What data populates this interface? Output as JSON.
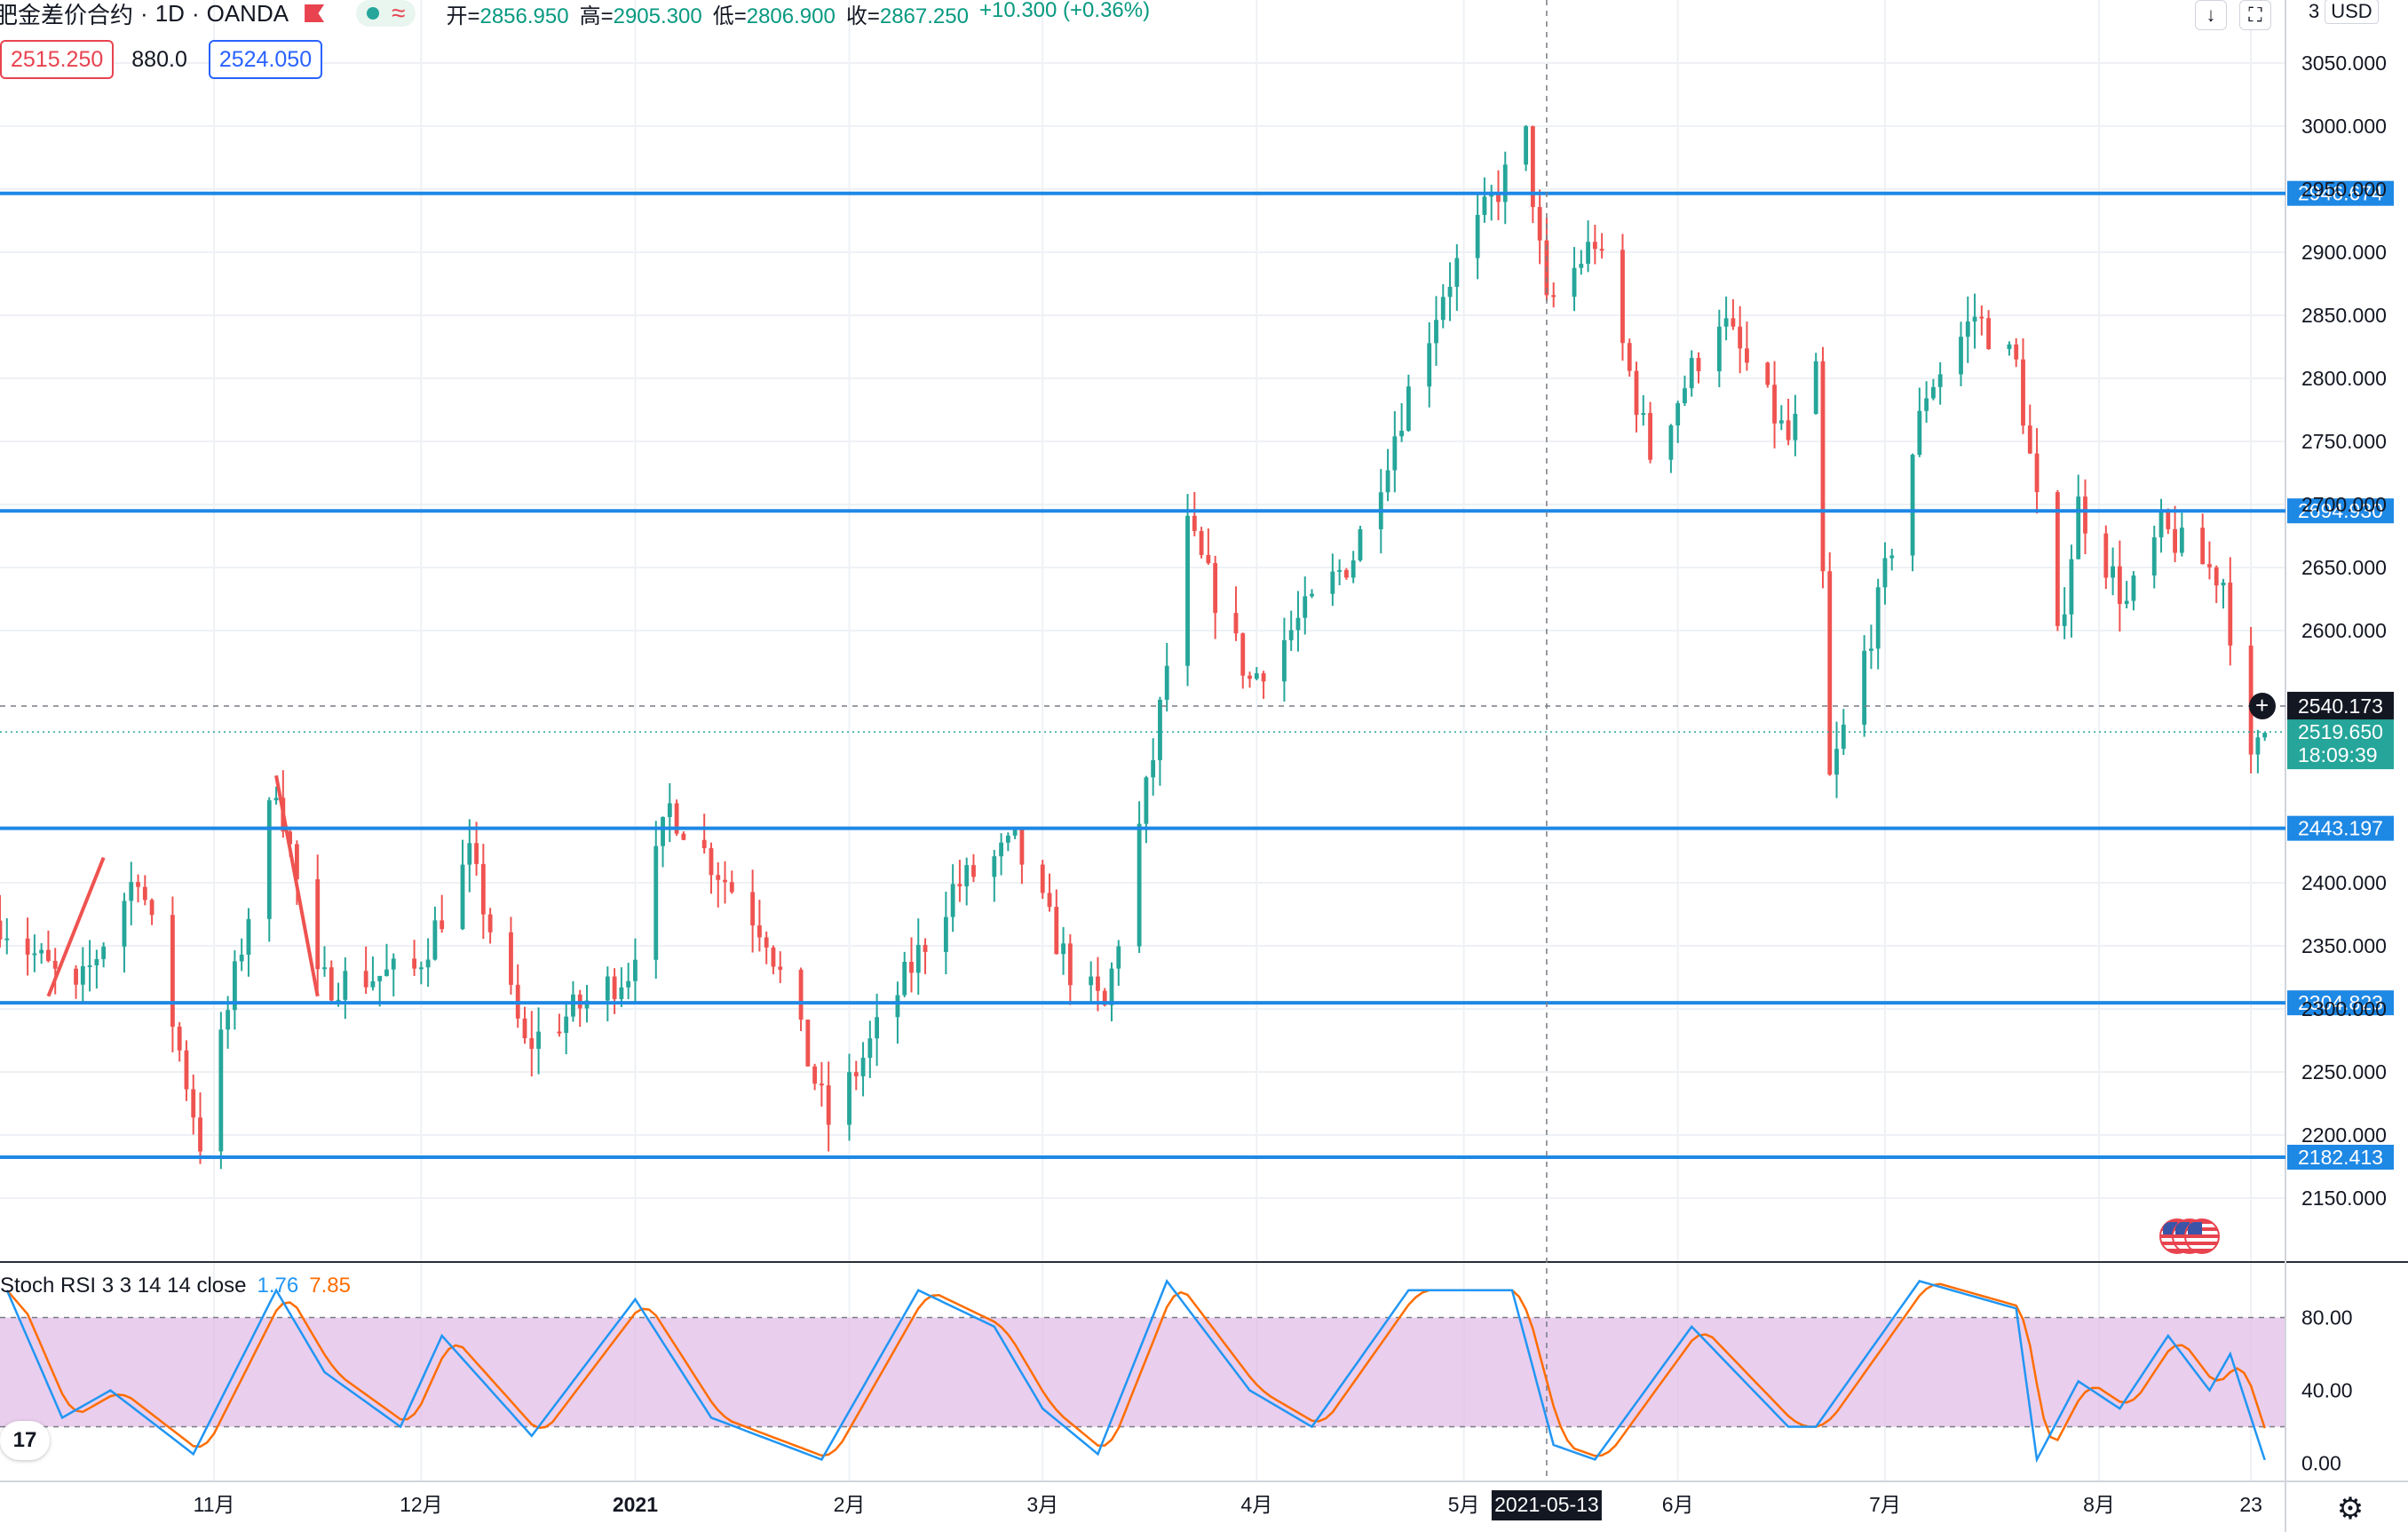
{
  "header": {
    "symbol": "肥金差价合约",
    "interval": "1D",
    "exchange": "OANDA",
    "ohlc": [
      {
        "label": "开",
        "value": "2856.950"
      },
      {
        "label": "高",
        "value": "2905.300"
      },
      {
        "label": "低",
        "value": "2806.900"
      },
      {
        "label": "收",
        "value": "2867.250"
      }
    ],
    "change": "+10.300 (+0.36%)"
  },
  "quote": {
    "sell": "2515.250",
    "spread": "880.0",
    "buy": "2524.050"
  },
  "toolbar": {
    "currency": "USD",
    "scroll_icon": "arrow-down-icon",
    "fullscreen_icon": "fullscreen-icon"
  },
  "indicator_legend": {
    "name": "Stoch RSI 3 3 14 14 close",
    "k_value": "1.76",
    "d_value": "7.85"
  },
  "colors": {
    "up": "#26a69a",
    "down": "#ef5350",
    "level_line": "#1e88e5",
    "stoch_k": "#2196f3",
    "stoch_d": "#ff6d00",
    "stoch_band": "#e1bee7"
  },
  "chart_data": [
    {
      "type": "candlestick",
      "title": "肥金差价合约 · 1D · OANDA",
      "y_axis": {
        "ticks": [
          2150,
          2200,
          2250,
          2300,
          2350,
          2400,
          2600,
          2650,
          2700,
          2750,
          2800,
          2850,
          2900,
          2950,
          3000,
          3050
        ],
        "tick_labels": [
          "2150.000",
          "2200.000",
          "2250.000",
          "2300.000",
          "2350.000",
          "2400.000",
          "2600.000",
          "2650.000",
          "2700.000",
          "2750.000",
          "2800.000",
          "2850.000",
          "2900.000",
          "2950.000",
          "3000.000",
          "3050.000"
        ],
        "range": [
          2100,
          3100
        ]
      },
      "x_axis": {
        "ticks": [
          "11月",
          "12月",
          "2021",
          "2月",
          "3月",
          "4月",
          "5月",
          "6月",
          "7月",
          "8月",
          "23"
        ],
        "tick_dates": [
          "2020-11-01",
          "2020-12-01",
          "2021-01-01",
          "2021-02-01",
          "2021-03-01",
          "2021-04-01",
          "2021-05-01",
          "2021-06-01",
          "2021-07-01",
          "2021-08-01",
          "2021-08-23"
        ],
        "range": [
          "2020-10-01",
          "2021-08-28"
        ],
        "crosshair_date": "2021-05-13"
      },
      "horizontal_levels": [
        2946.674,
        2694.93,
        2443.197,
        2304.823,
        2182.413
      ],
      "crosshair_price": "2540.173",
      "last_price": "2519.650",
      "countdown": "18:09:39",
      "trend_lines": [
        {
          "color": "#ef5350",
          "from": {
            "date": "2020-10-08",
            "price": 2310
          },
          "to": {
            "date": "2020-10-16",
            "price": 2420
          }
        },
        {
          "color": "#ef5350",
          "from": {
            "date": "2020-11-10",
            "price": 2485
          },
          "to": {
            "date": "2020-11-16",
            "price": 2310
          }
        }
      ],
      "grid": true,
      "key_points": [
        {
          "date": "2020-10-01",
          "close": 2370
        },
        {
          "date": "2020-10-12",
          "close": 2310
        },
        {
          "date": "2020-10-21",
          "close": 2410
        },
        {
          "date": "2020-10-30",
          "close": 2195
        },
        {
          "date": "2020-11-10",
          "close": 2480
        },
        {
          "date": "2020-11-16",
          "close": 2320
        },
        {
          "date": "2020-11-30",
          "close": 2330
        },
        {
          "date": "2020-12-08",
          "close": 2420
        },
        {
          "date": "2020-12-16",
          "close": 2270
        },
        {
          "date": "2020-12-31",
          "close": 2330
        },
        {
          "date": "2021-01-06",
          "close": 2460
        },
        {
          "date": "2021-01-20",
          "close": 2360
        },
        {
          "date": "2021-01-29",
          "close": 2210
        },
        {
          "date": "2021-02-16",
          "close": 2395
        },
        {
          "date": "2021-02-25",
          "close": 2430
        },
        {
          "date": "2021-03-05",
          "close": 2330
        },
        {
          "date": "2021-03-10",
          "close": 2300
        },
        {
          "date": "2021-03-17",
          "close": 2500
        },
        {
          "date": "2021-03-22",
          "close": 2680
        },
        {
          "date": "2021-03-31",
          "close": 2560
        },
        {
          "date": "2021-04-15",
          "close": 2660
        },
        {
          "date": "2021-04-28",
          "close": 2870
        },
        {
          "date": "2021-05-10",
          "close": 2990
        },
        {
          "date": "2021-05-13",
          "close": 2855
        },
        {
          "date": "2021-05-20",
          "close": 2910
        },
        {
          "date": "2021-05-28",
          "close": 2740
        },
        {
          "date": "2021-06-07",
          "close": 2850
        },
        {
          "date": "2021-06-17",
          "close": 2750
        },
        {
          "date": "2021-06-21",
          "close": 2800
        },
        {
          "date": "2021-06-23",
          "close": 2480
        },
        {
          "date": "2021-06-30",
          "close": 2620
        },
        {
          "date": "2021-07-07",
          "close": 2790
        },
        {
          "date": "2021-07-14",
          "close": 2850
        },
        {
          "date": "2021-07-20",
          "close": 2810
        },
        {
          "date": "2021-07-26",
          "close": 2590
        },
        {
          "date": "2021-07-29",
          "close": 2700
        },
        {
          "date": "2021-08-05",
          "close": 2620
        },
        {
          "date": "2021-08-10",
          "close": 2680
        },
        {
          "date": "2021-08-19",
          "close": 2640
        },
        {
          "date": "2021-08-23",
          "close": 2490
        },
        {
          "date": "2021-08-25",
          "close": 2520
        }
      ]
    },
    {
      "type": "line",
      "title": "Stoch RSI 3 3 14 14 close",
      "y_axis": {
        "ticks": [
          0,
          40,
          80
        ],
        "tick_labels": [
          "0.00",
          "40.00",
          "80.00"
        ],
        "range": [
          -10,
          110
        ]
      },
      "band": [
        20,
        80
      ],
      "series": [
        {
          "name": "K",
          "color": "#2196f3",
          "last": 1.76
        },
        {
          "name": "D",
          "color": "#ff6d00",
          "last": 7.85
        }
      ],
      "key_points": [
        {
          "date": "2020-10-02",
          "k": 95
        },
        {
          "date": "2020-10-10",
          "k": 25
        },
        {
          "date": "2020-10-17",
          "k": 40
        },
        {
          "date": "2020-10-29",
          "k": 5
        },
        {
          "date": "2020-11-10",
          "k": 95
        },
        {
          "date": "2020-11-17",
          "k": 50
        },
        {
          "date": "2020-11-28",
          "k": 20
        },
        {
          "date": "2020-12-04",
          "k": 70
        },
        {
          "date": "2020-12-17",
          "k": 15
        },
        {
          "date": "2021-01-01",
          "k": 90
        },
        {
          "date": "2021-01-12",
          "k": 25
        },
        {
          "date": "2021-01-28",
          "k": 2
        },
        {
          "date": "2021-02-11",
          "k": 95
        },
        {
          "date": "2021-02-22",
          "k": 75
        },
        {
          "date": "2021-03-01",
          "k": 30
        },
        {
          "date": "2021-03-09",
          "k": 5
        },
        {
          "date": "2021-03-19",
          "k": 100
        },
        {
          "date": "2021-03-31",
          "k": 40
        },
        {
          "date": "2021-04-09",
          "k": 20
        },
        {
          "date": "2021-04-23",
          "k": 95
        },
        {
          "date": "2021-05-08",
          "k": 95
        },
        {
          "date": "2021-05-14",
          "k": 10
        },
        {
          "date": "2021-05-20",
          "k": 2
        },
        {
          "date": "2021-06-03",
          "k": 75
        },
        {
          "date": "2021-06-17",
          "k": 20
        },
        {
          "date": "2021-06-21",
          "k": 20
        },
        {
          "date": "2021-07-06",
          "k": 100
        },
        {
          "date": "2021-07-20",
          "k": 85
        },
        {
          "date": "2021-07-23",
          "k": 2
        },
        {
          "date": "2021-07-29",
          "k": 45
        },
        {
          "date": "2021-08-04",
          "k": 30
        },
        {
          "date": "2021-08-11",
          "k": 70
        },
        {
          "date": "2021-08-17",
          "k": 40
        },
        {
          "date": "2021-08-20",
          "k": 60
        },
        {
          "date": "2021-08-25",
          "k": 1.76
        }
      ]
    }
  ]
}
